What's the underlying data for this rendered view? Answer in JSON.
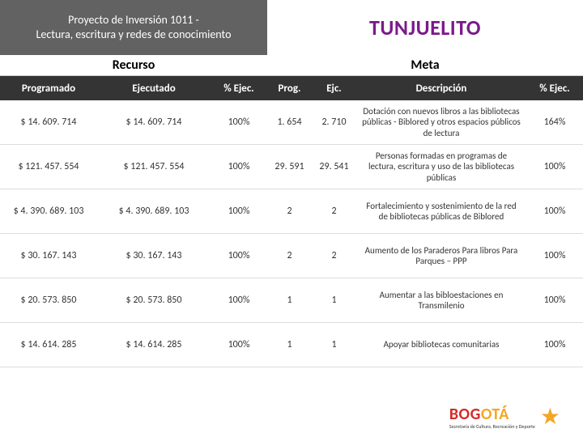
{
  "header": {
    "project_line1": "Proyecto de Inversión 1011 -",
    "project_line2": "Lectura, escritura y redes de conocimiento",
    "location": "TUNJUELITO"
  },
  "sections": {
    "recurso": "Recurso",
    "meta": "Meta"
  },
  "columns": {
    "programado": "Programado",
    "ejecutado": "Ejecutado",
    "pct_ejec": "% Ejec.",
    "prog": "Prog.",
    "ejc": "Ejc.",
    "descripcion": "Descripción",
    "pct_ejec2": "% Ejec."
  },
  "rows": [
    {
      "programado": "$ 14. 609. 714",
      "ejecutado": "$ 14. 609. 714",
      "pct_ejec": "100%",
      "prog": "1. 654",
      "ejc": "2. 710",
      "descripcion": "Dotación con nuevos libros a las bibliotecas públicas - Biblored y otros  espacios públicos de lectura",
      "pct_ejec2": "164%"
    },
    {
      "programado": "$ 121. 457. 554",
      "ejecutado": "$ 121. 457. 554",
      "pct_ejec": "100%",
      "prog": "29. 591",
      "ejc": "29. 541",
      "descripcion": "Personas formadas en programas de lectura, escritura y uso de las bibliotecas públicas",
      "pct_ejec2": "100%"
    },
    {
      "programado": "$ 4. 390. 689. 103",
      "ejecutado": "$ 4. 390. 689. 103",
      "pct_ejec": "100%",
      "prog": "2",
      "ejc": "2",
      "descripcion": "Fortalecimiento y sostenimiento de la red de bibliotecas públicas de Biblored",
      "pct_ejec2": "100%"
    },
    {
      "programado": "$ 30. 167. 143",
      "ejecutado": "$ 30. 167. 143",
      "pct_ejec": "100%",
      "prog": "2",
      "ejc": "2",
      "descripcion": "Aumento de los Paraderos Para libros Para Parques – PPP",
      "pct_ejec2": "100%"
    },
    {
      "programado": "$ 20. 573. 850",
      "ejecutado": "$ 20. 573. 850",
      "pct_ejec": "100%",
      "prog": "1",
      "ejc": "1",
      "descripcion": "Aumentar a las bibloestaciones en Transmilenio",
      "pct_ejec2": "100%"
    },
    {
      "programado": "$ 14. 614. 285",
      "ejecutado": "$ 14. 614. 285",
      "pct_ejec": "100%",
      "prog": "1",
      "ejc": "1",
      "descripcion": "Apoyar bibliotecas comunitarias",
      "pct_ejec2": "100%"
    }
  ],
  "logo": {
    "bog": "BOG",
    "ota": "OTÁ",
    "sub": "Secretaría de Cultura, Recreación y Deporte"
  },
  "colors": {
    "header_bg": "#626262",
    "colhdr_bg": "#343434",
    "title": "#7b1a8b",
    "logo_red": "#d62828",
    "logo_yellow": "#f5a623"
  }
}
